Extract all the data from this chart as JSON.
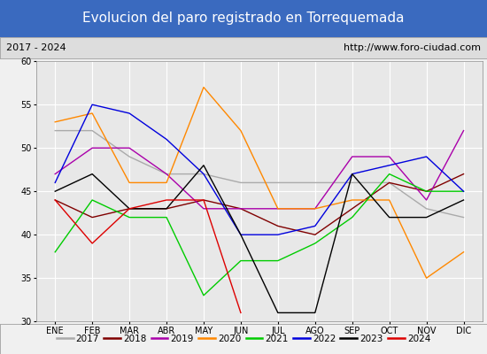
{
  "title": "Evolucion del paro registrado en Torrequemada",
  "subtitle_left": "2017 - 2024",
  "subtitle_right": "http://www.foro-ciudad.com",
  "months": [
    "ENE",
    "FEB",
    "MAR",
    "ABR",
    "MAY",
    "JUN",
    "JUL",
    "AGO",
    "SEP",
    "OCT",
    "NOV",
    "DIC"
  ],
  "ylim": [
    30,
    60
  ],
  "yticks": [
    30,
    35,
    40,
    45,
    50,
    55,
    60
  ],
  "series": {
    "2017": {
      "color": "#aaaaaa",
      "values": [
        52,
        52,
        49,
        47,
        47,
        46,
        46,
        46,
        46,
        46,
        43,
        42
      ]
    },
    "2018": {
      "color": "#800000",
      "values": [
        44,
        42,
        43,
        43,
        44,
        43,
        41,
        40,
        43,
        46,
        45,
        47
      ]
    },
    "2019": {
      "color": "#aa00aa",
      "values": [
        47,
        50,
        50,
        47,
        43,
        43,
        43,
        43,
        49,
        49,
        44,
        52
      ]
    },
    "2020": {
      "color": "#ff8800",
      "values": [
        53,
        54,
        46,
        46,
        57,
        52,
        43,
        43,
        44,
        44,
        35,
        38
      ]
    },
    "2021": {
      "color": "#00cc00",
      "values": [
        38,
        44,
        42,
        42,
        33,
        37,
        37,
        39,
        42,
        47,
        45,
        45
      ]
    },
    "2022": {
      "color": "#0000dd",
      "values": [
        46,
        55,
        54,
        51,
        47,
        40,
        40,
        41,
        47,
        48,
        49,
        45
      ]
    },
    "2023": {
      "color": "#000000",
      "values": [
        45,
        47,
        43,
        43,
        48,
        40,
        31,
        31,
        47,
        42,
        42,
        44
      ]
    },
    "2024": {
      "color": "#dd0000",
      "values": [
        44,
        39,
        43,
        44,
        44,
        31,
        null,
        null,
        null,
        null,
        null,
        null
      ]
    }
  },
  "title_bg_color": "#3a6abf",
  "title_text_color": "#ffffff",
  "subtitle_bg_color": "#dddddd",
  "plot_bg_color": "#e8e8e8",
  "grid_color": "#ffffff",
  "fig_bg_color": "#f0f0f0"
}
